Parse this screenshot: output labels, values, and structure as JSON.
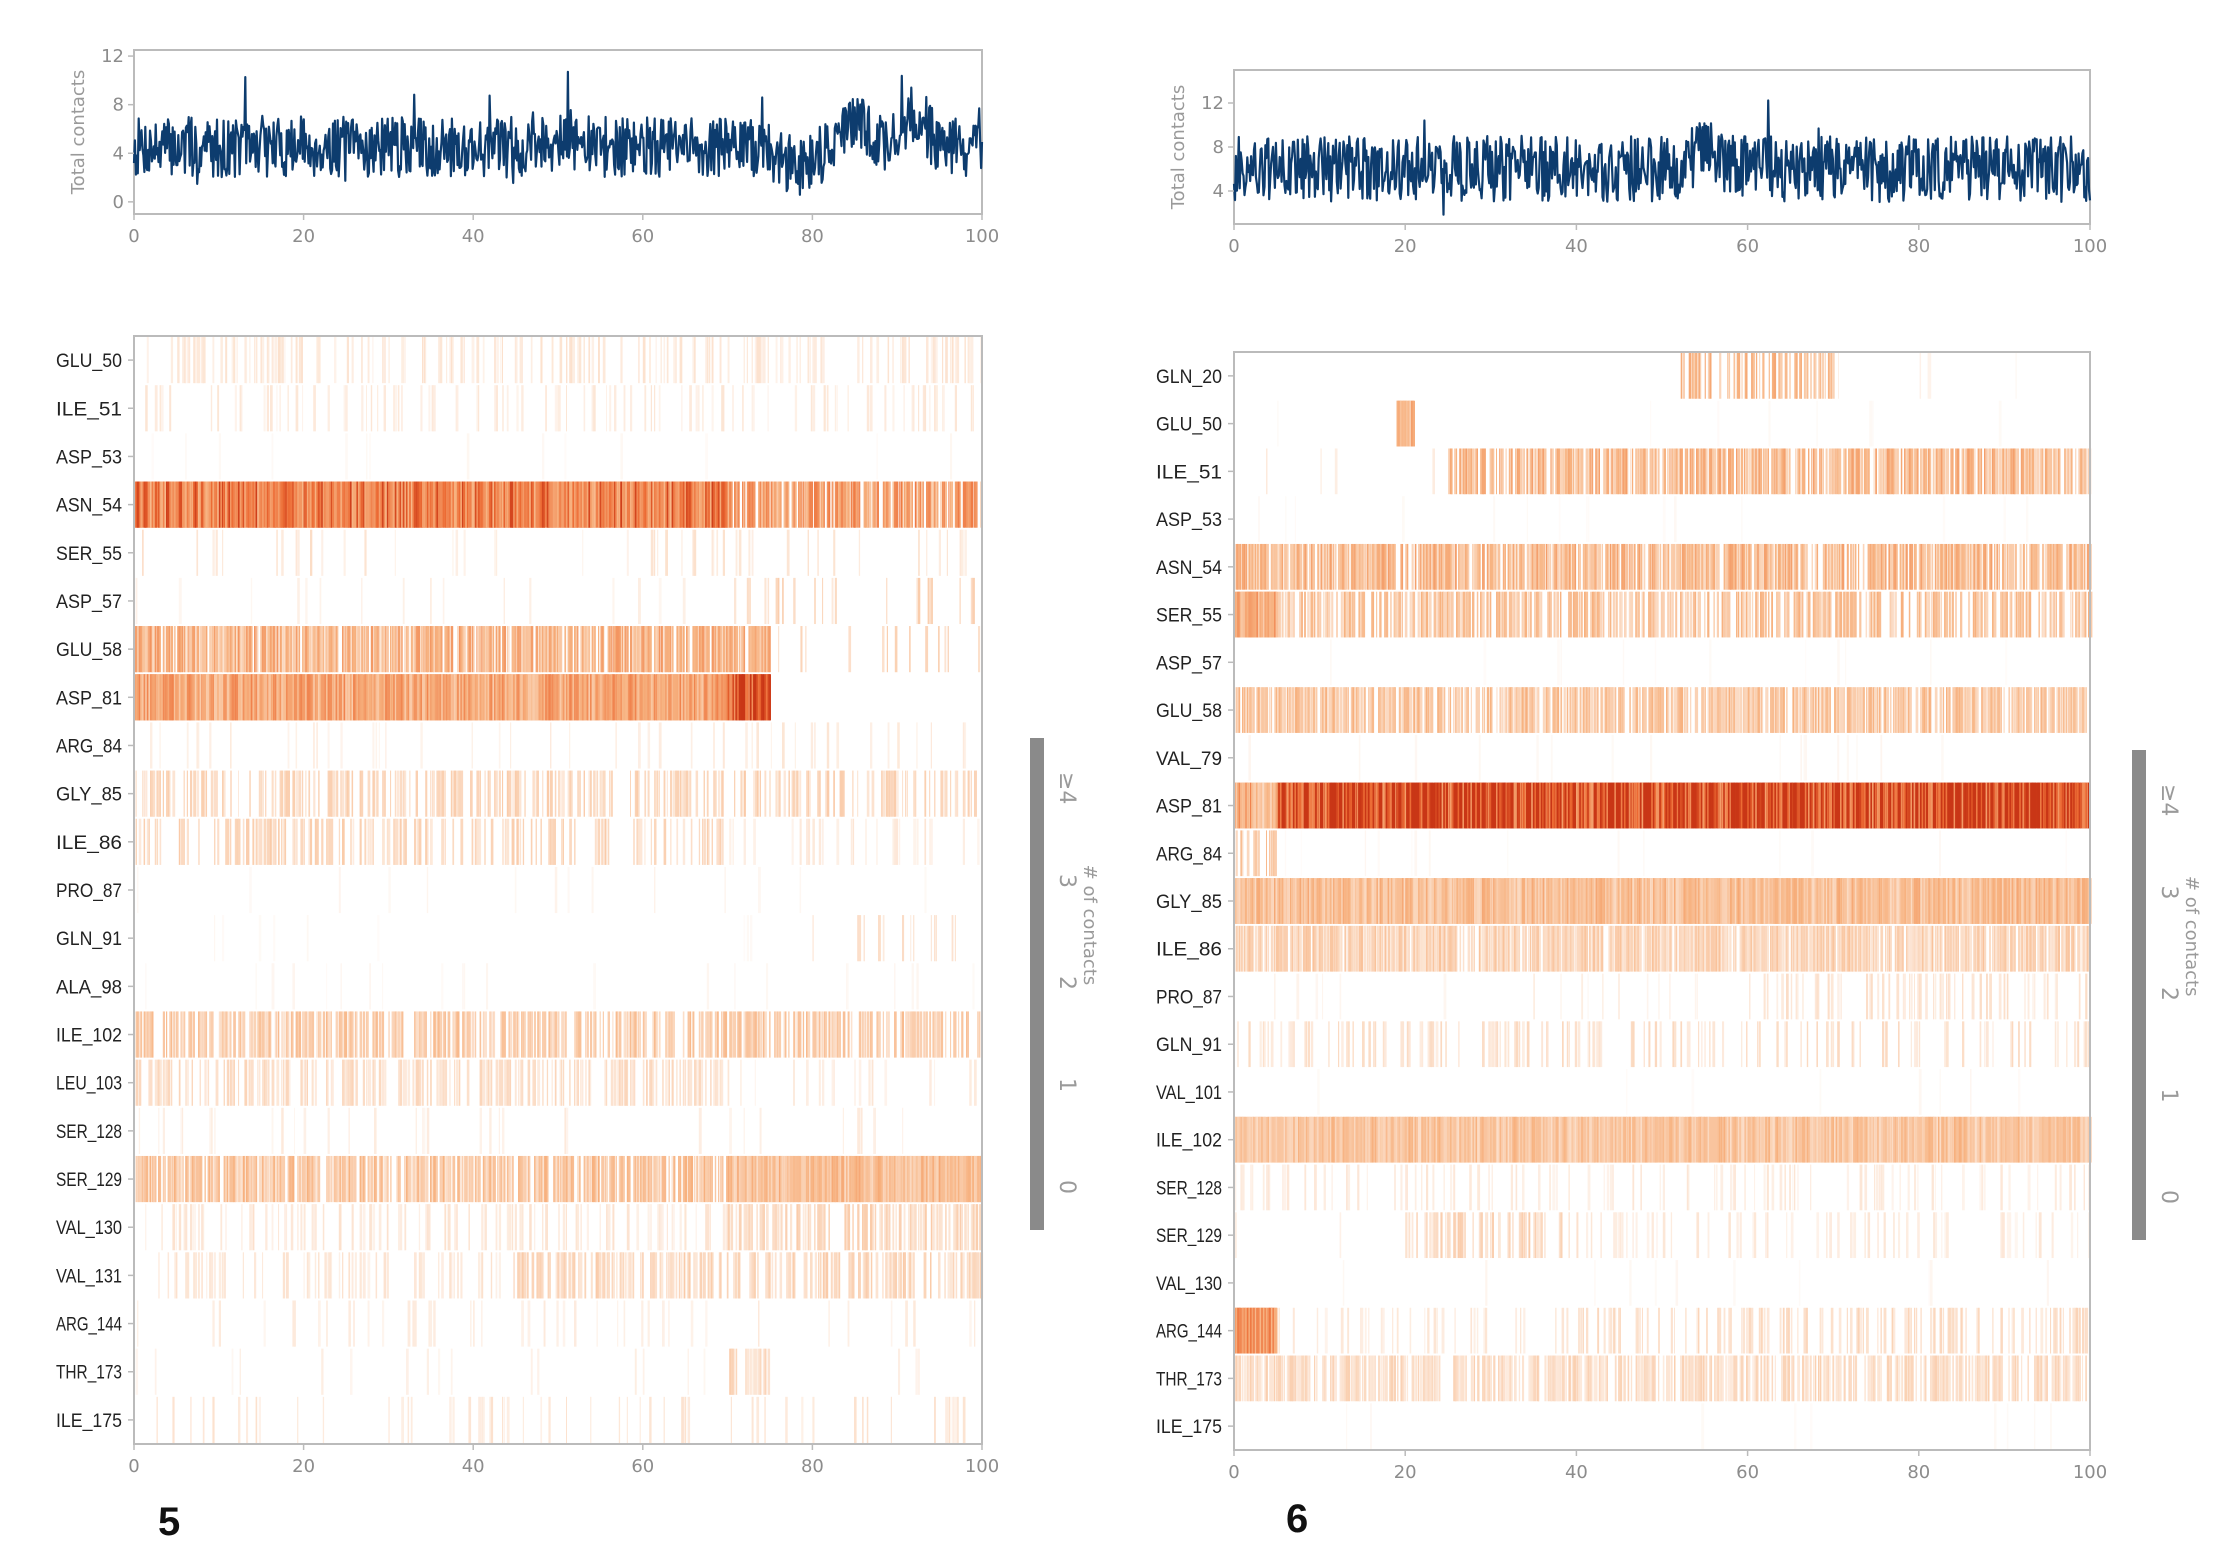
{
  "colors": {
    "line": "#0d3c6e",
    "heat": "#ec6a33",
    "frame": "#bbbbbb",
    "colorbar": "#8a8a8a"
  },
  "chart_data": [
    {
      "panel_label": "5",
      "top": {
        "type": "line",
        "ylabel": "Total contacts",
        "xlim": [
          0,
          100
        ],
        "ylim": [
          -1,
          12.5
        ],
        "xticks": [
          "0",
          "20",
          "40",
          "60",
          "80",
          "100"
        ],
        "yticks": [
          "0",
          "4",
          "8",
          "12"
        ],
        "baseline": 4.5,
        "spread": 2.5,
        "peaks": [
          [
            85,
            2.0
          ],
          [
            92,
            2.5
          ],
          [
            50,
            1.0
          ]
        ],
        "dips": [
          [
            78,
            1.5
          ]
        ]
      },
      "heatmap": {
        "type": "heatmap",
        "xlabel": "",
        "xlim": [
          0,
          100
        ],
        "xticks": [
          "0",
          "20",
          "40",
          "60",
          "80",
          "100"
        ],
        "rows": [
          "GLU_50",
          "ILE_51",
          "ASP_53",
          "ASN_54",
          "SER_55",
          "ASP_57",
          "GLU_58",
          "ASP_81",
          "ARG_84",
          "GLY_85",
          "ILE_86",
          "PRO_87",
          "GLN_91",
          "ALA_98",
          "ILE_102",
          "LEU_103",
          "SER_128",
          "SER_129",
          "VAL_130",
          "VAL_131",
          "ARG_144",
          "THR_173",
          "ILE_175"
        ],
        "row_segments": [
          [
            [
              0,
              100,
              0.3,
              0.35
            ]
          ],
          [
            [
              0,
              100,
              0.2,
              0.3
            ]
          ],
          [
            [
              0,
              100,
              0.02,
              0.1
            ]
          ],
          [
            [
              0,
              70,
              0.95,
              1.9
            ],
            [
              70,
              100,
              0.8,
              1.5
            ]
          ],
          [
            [
              0,
              30,
              0.08,
              0.4
            ],
            [
              30,
              60,
              0.05,
              0.2
            ],
            [
              60,
              100,
              0.12,
              0.35
            ]
          ],
          [
            [
              0,
              70,
              0.06,
              0.2
            ],
            [
              70,
              100,
              0.18,
              0.6
            ]
          ],
          [
            [
              0,
              75,
              0.85,
              1.2
            ],
            [
              75,
              100,
              0.12,
              0.6
            ]
          ],
          [
            [
              0,
              70,
              0.95,
              1.4
            ],
            [
              70,
              75,
              1.0,
              2.5
            ]
          ],
          [
            [
              0,
              100,
              0.08,
              0.3
            ]
          ],
          [
            [
              0,
              100,
              0.45,
              0.6
            ]
          ],
          [
            [
              0,
              70,
              0.4,
              0.6
            ],
            [
              70,
              100,
              0.15,
              0.3
            ]
          ],
          [
            [
              0,
              100,
              0.03,
              0.15
            ]
          ],
          [
            [
              0,
              80,
              0.03,
              0.1
            ],
            [
              80,
              100,
              0.15,
              0.4
            ]
          ],
          [
            [
              0,
              100,
              0.03,
              0.12
            ]
          ],
          [
            [
              0,
              100,
              0.6,
              0.8
            ]
          ],
          [
            [
              0,
              70,
              0.45,
              0.5
            ],
            [
              70,
              100,
              0.15,
              0.3
            ]
          ],
          [
            [
              0,
              100,
              0.08,
              0.25
            ]
          ],
          [
            [
              0,
              70,
              0.8,
              0.9
            ],
            [
              70,
              100,
              1.0,
              1.0
            ]
          ],
          [
            [
              0,
              70,
              0.25,
              0.35
            ],
            [
              70,
              100,
              0.55,
              0.6
            ]
          ],
          [
            [
              0,
              45,
              0.25,
              0.35
            ],
            [
              45,
              100,
              0.55,
              0.6
            ]
          ],
          [
            [
              0,
              100,
              0.08,
              0.25
            ]
          ],
          [
            [
              0,
              70,
              0.05,
              0.2
            ],
            [
              70,
              75,
              0.6,
              0.6
            ],
            [
              75,
              100,
              0.05,
              0.2
            ]
          ],
          [
            [
              0,
              100,
              0.12,
              0.35
            ]
          ]
        ],
        "colorbar": {
          "label": "# of contacts",
          "ticks": [
            "0",
            "1",
            "2",
            "3",
            "≥4"
          ]
        }
      }
    },
    {
      "panel_label": "6",
      "top": {
        "type": "line",
        "ylabel": "Total contacts",
        "xlim": [
          0,
          100
        ],
        "ylim": [
          1,
          15
        ],
        "xticks": [
          "0",
          "20",
          "40",
          "60",
          "80",
          "100"
        ],
        "yticks": [
          "4",
          "8",
          "12"
        ],
        "baseline": 6.0,
        "spread": 3.0,
        "peaks": [
          [
            55,
            1.5
          ]
        ],
        "dips": []
      },
      "heatmap": {
        "type": "heatmap",
        "xlabel": "",
        "xlim": [
          0,
          100
        ],
        "xticks": [
          "0",
          "20",
          "40",
          "60",
          "80",
          "100"
        ],
        "rows": [
          "GLN_20",
          "GLU_50",
          "ILE_51",
          "ASP_53",
          "ASN_54",
          "SER_55",
          "ASP_57",
          "GLU_58",
          "VAL_79",
          "ASP_81",
          "ARG_84",
          "GLY_85",
          "ILE_86",
          "PRO_87",
          "GLN_91",
          "VAL_101",
          "ILE_102",
          "SER_128",
          "SER_129",
          "VAL_130",
          "ARG_144",
          "THR_173",
          "ILE_175"
        ],
        "row_segments": [
          [
            [
              52,
              70,
              0.55,
              1.0
            ],
            [
              70,
              100,
              0.02,
              0.2
            ]
          ],
          [
            [
              0,
              100,
              0.02,
              0.1
            ],
            [
              19,
              21,
              1.0,
              1.2
            ]
          ],
          [
            [
              0,
              25,
              0.05,
              0.3
            ],
            [
              25,
              100,
              0.8,
              1.1
            ]
          ],
          [
            [
              0,
              100,
              0.02,
              0.08
            ]
          ],
          [
            [
              0,
              100,
              0.8,
              1.1
            ]
          ],
          [
            [
              0,
              5,
              1.0,
              1.3
            ],
            [
              5,
              100,
              0.6,
              0.9
            ]
          ],
          [
            [
              0,
              100,
              0.02,
              0.08
            ]
          ],
          [
            [
              0,
              100,
              0.75,
              0.9
            ]
          ],
          [
            [
              0,
              100,
              0.03,
              0.12
            ]
          ],
          [
            [
              0,
              2,
              1.0,
              1.4
            ],
            [
              2,
              5,
              1.0,
              0.9
            ],
            [
              5,
              100,
              1.0,
              2.6
            ]
          ],
          [
            [
              0,
              5,
              0.6,
              0.9
            ],
            [
              5,
              100,
              0.03,
              0.1
            ]
          ],
          [
            [
              0,
              100,
              0.9,
              1.0
            ]
          ],
          [
            [
              0,
              100,
              0.85,
              0.7
            ]
          ],
          [
            [
              0,
              60,
              0.05,
              0.2
            ],
            [
              60,
              100,
              0.3,
              0.4
            ]
          ],
          [
            [
              0,
              100,
              0.25,
              0.45
            ]
          ],
          [
            [
              0,
              100,
              0.02,
              0.1
            ]
          ],
          [
            [
              0,
              100,
              0.9,
              0.9
            ]
          ],
          [
            [
              0,
              100,
              0.2,
              0.3
            ]
          ],
          [
            [
              0,
              20,
              0.05,
              0.2
            ],
            [
              20,
              40,
              0.45,
              0.6
            ],
            [
              40,
              100,
              0.15,
              0.3
            ]
          ],
          [
            [
              0,
              100,
              0.03,
              0.12
            ]
          ],
          [
            [
              0,
              5,
              1.0,
              1.6
            ],
            [
              5,
              40,
              0.15,
              0.3
            ],
            [
              40,
              100,
              0.35,
              0.5
            ]
          ],
          [
            [
              0,
              100,
              0.7,
              0.55
            ]
          ],
          [
            [
              0,
              100,
              0.02,
              0.08
            ]
          ]
        ],
        "colorbar": {
          "label": "# of contacts",
          "ticks": [
            "0",
            "1",
            "2",
            "3",
            "≥4"
          ]
        }
      }
    }
  ]
}
